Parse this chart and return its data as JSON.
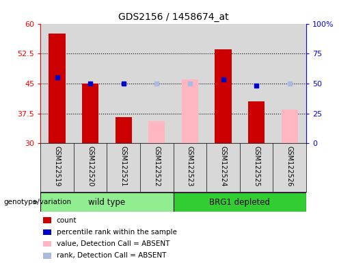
{
  "title": "GDS2156 / 1458674_at",
  "samples": [
    "GSM122519",
    "GSM122520",
    "GSM122521",
    "GSM122522",
    "GSM122523",
    "GSM122524",
    "GSM122525",
    "GSM122526"
  ],
  "ylim_left": [
    30,
    60
  ],
  "ylim_right": [
    0,
    100
  ],
  "yticks_left": [
    30,
    37.5,
    45,
    52.5,
    60
  ],
  "yticks_right": [
    0,
    25,
    50,
    75,
    100
  ],
  "yticklabels_right": [
    "0",
    "25",
    "50",
    "75",
    "100%"
  ],
  "count_values": [
    57.5,
    45.0,
    36.5,
    null,
    null,
    53.5,
    40.5,
    null
  ],
  "rank_values": [
    46.5,
    45.0,
    45.0,
    null,
    null,
    46.0,
    44.5,
    null
  ],
  "absent_value_values": [
    null,
    null,
    null,
    35.5,
    46.0,
    null,
    null,
    38.5
  ],
  "absent_rank_values": [
    null,
    null,
    null,
    45.0,
    45.0,
    null,
    null,
    45.0
  ],
  "bar_width": 0.5,
  "count_color": "#CC0000",
  "rank_color": "#0000CC",
  "absent_value_color": "#FFB6C1",
  "absent_rank_color": "#AABBDD",
  "bg_color": "#d8d8d8",
  "group_label": "genotype/variation",
  "wild_type_color": "#90EE90",
  "brg1_color": "#32CD32",
  "legend_items": [
    {
      "color": "#CC0000",
      "label": "count"
    },
    {
      "color": "#0000CC",
      "label": "percentile rank within the sample"
    },
    {
      "color": "#FFB6C1",
      "label": "value, Detection Call = ABSENT"
    },
    {
      "color": "#AABBDD",
      "label": "rank, Detection Call = ABSENT"
    }
  ]
}
